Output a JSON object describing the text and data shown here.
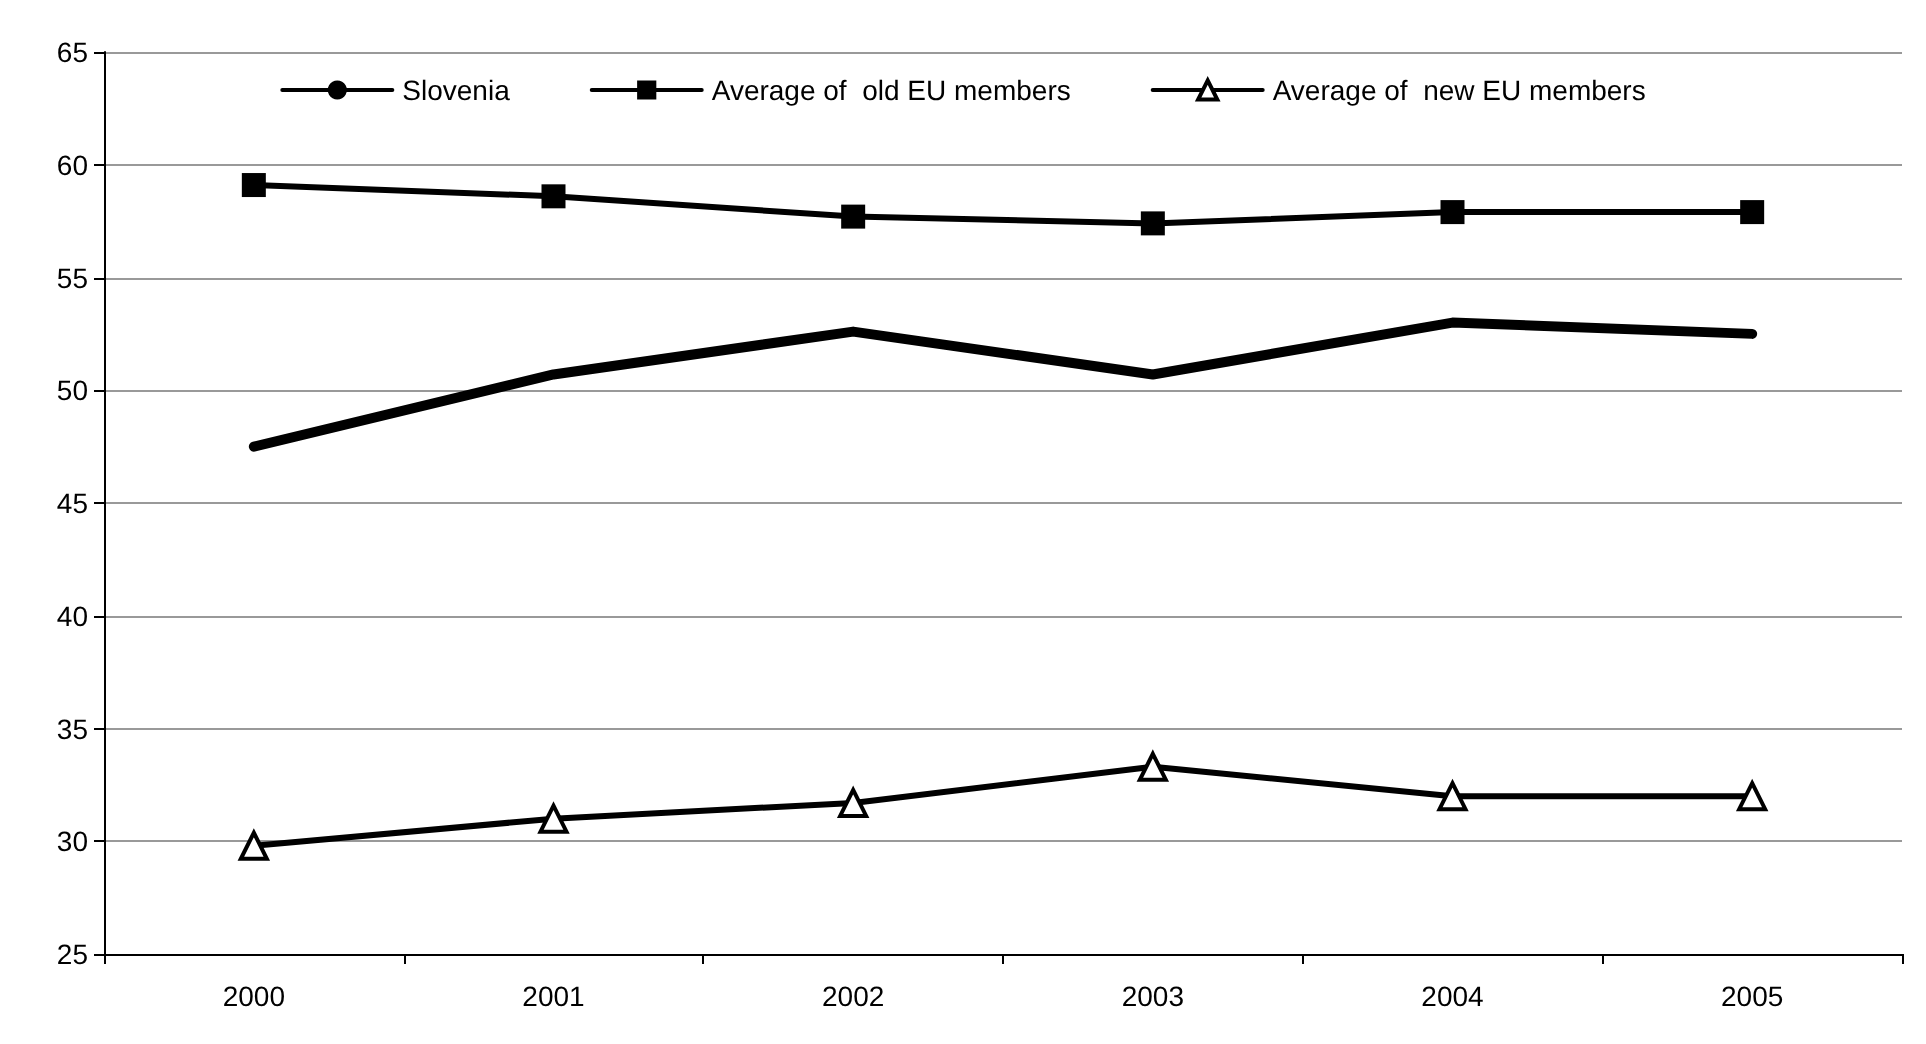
{
  "chart_data": {
    "type": "line",
    "categories": [
      "2000",
      "2001",
      "2002",
      "2003",
      "2004",
      "2005"
    ],
    "series": [
      {
        "name": "Slovenia",
        "color": "#000000",
        "marker": "none",
        "values": [
          47.5,
          50.7,
          52.6,
          50.7,
          53.0,
          52.5
        ]
      },
      {
        "name": "Average of  old EU members",
        "color": "#000000",
        "marker": "square",
        "values": [
          59.1,
          58.6,
          57.7,
          57.4,
          57.9,
          57.9
        ]
      },
      {
        "name": "Average of  new EU members",
        "color": "#000000",
        "marker": "triangle",
        "values": [
          29.8,
          31.0,
          31.7,
          33.3,
          32.0,
          32.0
        ]
      }
    ],
    "ylim": [
      25,
      65
    ],
    "yticks": [
      25,
      30,
      35,
      40,
      45,
      50,
      55,
      60,
      65
    ],
    "grid": "y",
    "legend": "top"
  }
}
